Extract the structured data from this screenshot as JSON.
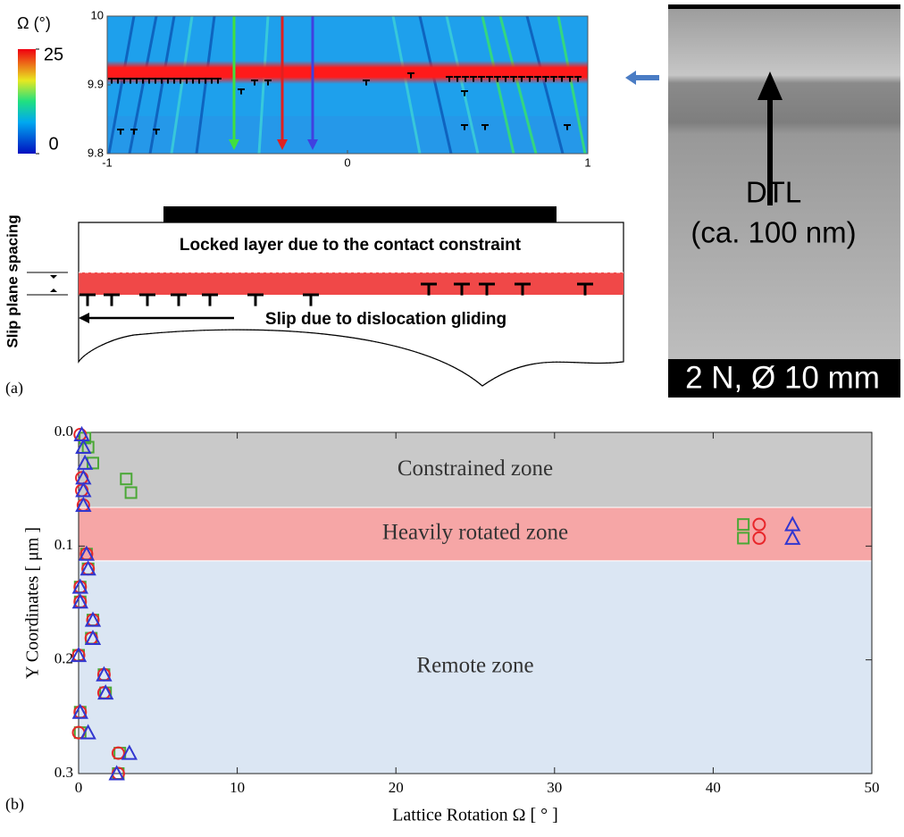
{
  "panel_labels": [
    "(a)",
    "(b)"
  ],
  "chart_data": [
    {
      "type": "heatmap",
      "colorbar_label": "Ω (°)",
      "clim": [
        0,
        25
      ],
      "colorbar_ticks": [
        0,
        25
      ],
      "xlim": [
        -1,
        1
      ],
      "xticks": [
        -1,
        0,
        1
      ],
      "ylim": [
        9.8,
        10
      ],
      "yticks": [
        9.8,
        9.9,
        10
      ]
    },
    {
      "type": "scatter",
      "xlabel": "Lattice Rotation Ω [ ° ]",
      "ylabel": "Y Coordinates [ μm ]",
      "xlim": [
        0,
        50
      ],
      "xticks": [
        0,
        10,
        20,
        30,
        40,
        50
      ],
      "ylim": [
        0,
        0.3
      ],
      "y_inverted": true,
      "yticks": [
        {
          "value": 0,
          "label": "0.0"
        },
        0.1,
        0.2,
        0.3
      ],
      "zones": [
        {
          "label": "Constrained zone",
          "from": 0,
          "to": 0.066,
          "color": "#c9c9c9"
        },
        {
          "label": "Heavily rotated zone",
          "from": 0.066,
          "to": 0.113,
          "color": "#f6a6a6"
        },
        {
          "label": "Remote zone",
          "from": 0.113,
          "to": 0.3,
          "color": "#dbe6f3"
        }
      ],
      "series": [
        {
          "marker": "square",
          "color": "#4aa836",
          "x": [
            0.4,
            0.6,
            0.9,
            3.0,
            3.3,
            41.9,
            41.9,
            0.5,
            0.6,
            0.1,
            0.1,
            0.9,
            0.8,
            0.0,
            1.6,
            1.7,
            0.1,
            0.1,
            2.6,
            2.5
          ],
          "y": [
            0.005,
            0.013,
            0.027,
            0.041,
            0.053,
            0.081,
            0.093,
            0.107,
            0.12,
            0.136,
            0.149,
            0.165,
            0.181,
            0.196,
            0.213,
            0.229,
            0.246,
            0.264,
            0.282,
            0.3
          ]
        },
        {
          "marker": "circle",
          "color": "#e8262a",
          "x": [
            0.1,
            0.2,
            0.2,
            0.3,
            42.9,
            42.9,
            0.5,
            0.6,
            0.1,
            0.1,
            0.9,
            0.8,
            0.0,
            1.6,
            1.6,
            0.1,
            0.0,
            2.5,
            2.5
          ],
          "y": [
            0.002,
            0.04,
            0.051,
            0.064,
            0.081,
            0.093,
            0.107,
            0.12,
            0.136,
            0.149,
            0.165,
            0.181,
            0.196,
            0.213,
            0.229,
            0.246,
            0.264,
            0.282,
            0.3
          ]
        },
        {
          "marker": "triangle",
          "color": "#3136d0",
          "x": [
            0.2,
            0.3,
            0.4,
            0.3,
            0.3,
            0.3,
            45.0,
            45.0,
            0.5,
            0.6,
            0.1,
            0.1,
            0.9,
            0.9,
            0.0,
            1.6,
            1.7,
            0.1,
            0.6,
            3.2,
            2.4
          ],
          "y": [
            0.002,
            0.013,
            0.027,
            0.04,
            0.051,
            0.064,
            0.081,
            0.093,
            0.107,
            0.12,
            0.136,
            0.149,
            0.165,
            0.181,
            0.196,
            0.213,
            0.229,
            0.246,
            0.264,
            0.282,
            0.3
          ]
        }
      ]
    }
  ],
  "schematic": {
    "top_label": "Locked layer due to the contact constraint",
    "bottom_label": "Slip due to dislocation gliding",
    "side_label": "Slip plane spacing"
  },
  "micrograph": {
    "label_line1": "DTL",
    "label_line2": "(ca. 100 nm)",
    "caption": "2 N, Ø 10 mm"
  }
}
